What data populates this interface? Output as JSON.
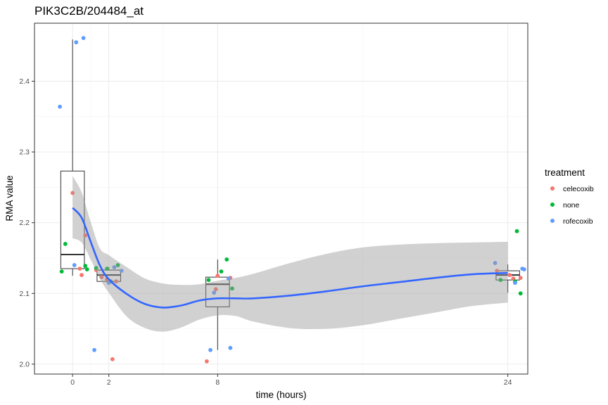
{
  "chart_data": {
    "type": "scatter",
    "title": "PIK3C2B/204484_at",
    "xlabel": "time (hours)",
    "ylabel": "RMA value",
    "xlim": [
      -2.1,
      25.1
    ],
    "ylim": [
      1.986,
      2.482
    ],
    "x_ticks": [
      0,
      2,
      8,
      24
    ],
    "y_ticks": [
      2.0,
      2.1,
      2.2,
      2.3,
      2.4
    ],
    "y_tick_labels": [
      "2.0",
      "2.1",
      "2.2",
      "2.3",
      "2.4"
    ],
    "grid": true,
    "legend": {
      "title": "treatment",
      "position": "right",
      "entries": [
        {
          "name": "celecoxib",
          "color": "#F8766D"
        },
        {
          "name": "none",
          "color": "#00BA38"
        },
        {
          "name": "rofecoxib",
          "color": "#619CFF"
        }
      ]
    },
    "boxplots": [
      {
        "x": 0,
        "lower_whisker": 2.125,
        "q1": 2.135,
        "median": 2.155,
        "q3": 2.273,
        "upper_whisker": 2.459
      },
      {
        "x": 2,
        "lower_whisker": 2.113,
        "q1": 2.117,
        "median": 2.126,
        "q3": 2.133,
        "upper_whisker": 2.137
      },
      {
        "x": 8,
        "lower_whisker": 2.02,
        "q1": 2.081,
        "median": 2.113,
        "q3": 2.123,
        "upper_whisker": 2.148
      },
      {
        "x": 24,
        "lower_whisker": 2.101,
        "q1": 2.119,
        "median": 2.126,
        "q3": 2.132,
        "upper_whisker": 2.141
      }
    ],
    "series": [
      {
        "name": "celecoxib",
        "color": "#F8766D",
        "points": [
          {
            "x": 0.0,
            "y": 2.242
          },
          {
            "x": 0.4,
            "y": 2.135
          },
          {
            "x": 0.5,
            "y": 2.126
          },
          {
            "x": 0.7,
            "y": 2.182
          },
          {
            "x": 1.3,
            "y": 2.133
          },
          {
            "x": 1.6,
            "y": 2.123
          },
          {
            "x": 1.9,
            "y": 2.12
          },
          {
            "x": 2.2,
            "y": 2.007
          },
          {
            "x": 2.4,
            "y": 2.117
          },
          {
            "x": 7.4,
            "y": 2.004
          },
          {
            "x": 7.9,
            "y": 2.106
          },
          {
            "x": 8.0,
            "y": 2.125
          },
          {
            "x": 8.7,
            "y": 2.122
          },
          {
            "x": 23.4,
            "y": 2.132
          },
          {
            "x": 24.1,
            "y": 2.126
          },
          {
            "x": 24.3,
            "y": 2.121
          },
          {
            "x": 24.7,
            "y": 2.122
          }
        ]
      },
      {
        "name": "none",
        "color": "#00BA38",
        "points": [
          {
            "x": -0.4,
            "y": 2.17
          },
          {
            "x": -0.6,
            "y": 2.131
          },
          {
            "x": 0.7,
            "y": 2.139
          },
          {
            "x": 0.8,
            "y": 2.134
          },
          {
            "x": 1.3,
            "y": 2.136
          },
          {
            "x": 1.9,
            "y": 2.135
          },
          {
            "x": 2.1,
            "y": 2.117
          },
          {
            "x": 2.5,
            "y": 2.14
          },
          {
            "x": 7.5,
            "y": 2.119
          },
          {
            "x": 8.2,
            "y": 2.131
          },
          {
            "x": 8.5,
            "y": 2.148
          },
          {
            "x": 8.8,
            "y": 2.107
          },
          {
            "x": 23.6,
            "y": 2.119
          },
          {
            "x": 24.4,
            "y": 2.117
          },
          {
            "x": 24.5,
            "y": 2.188
          },
          {
            "x": 24.7,
            "y": 2.1
          }
        ]
      },
      {
        "name": "rofecoxib",
        "color": "#619CFF",
        "points": [
          {
            "x": -0.7,
            "y": 2.364
          },
          {
            "x": 0.2,
            "y": 2.455
          },
          {
            "x": 0.6,
            "y": 2.461
          },
          {
            "x": 0.1,
            "y": 2.14
          },
          {
            "x": 1.2,
            "y": 2.02
          },
          {
            "x": 2.0,
            "y": 2.115
          },
          {
            "x": 2.3,
            "y": 2.137
          },
          {
            "x": 2.7,
            "y": 2.132
          },
          {
            "x": 7.6,
            "y": 2.02
          },
          {
            "x": 7.8,
            "y": 2.101
          },
          {
            "x": 8.6,
            "y": 2.121
          },
          {
            "x": 8.7,
            "y": 2.023
          },
          {
            "x": 23.3,
            "y": 2.143
          },
          {
            "x": 24.4,
            "y": 2.115
          },
          {
            "x": 24.8,
            "y": 2.135
          },
          {
            "x": 24.9,
            "y": 2.134
          }
        ]
      }
    ],
    "smooth": {
      "color": "#3366FF",
      "band_color": "#999999",
      "points": [
        {
          "x": 0,
          "y": 2.221,
          "lo": 2.178,
          "hi": 2.266
        },
        {
          "x": 0.5,
          "y": 2.207,
          "lo": 2.172,
          "hi": 2.243
        },
        {
          "x": 1,
          "y": 2.173,
          "lo": 2.148,
          "hi": 2.201
        },
        {
          "x": 1.5,
          "y": 2.14,
          "lo": 2.121,
          "hi": 2.164
        },
        {
          "x": 2,
          "y": 2.12,
          "lo": 2.101,
          "hi": 2.154
        },
        {
          "x": 3,
          "y": 2.099,
          "lo": 2.067,
          "hi": 2.137
        },
        {
          "x": 4,
          "y": 2.085,
          "lo": 2.051,
          "hi": 2.121
        },
        {
          "x": 5,
          "y": 2.08,
          "lo": 2.046,
          "hi": 2.114
        },
        {
          "x": 6,
          "y": 2.083,
          "lo": 2.052,
          "hi": 2.112
        },
        {
          "x": 7,
          "y": 2.09,
          "lo": 2.063,
          "hi": 2.113
        },
        {
          "x": 8,
          "y": 2.093,
          "lo": 2.069,
          "hi": 2.118
        },
        {
          "x": 9,
          "y": 2.093,
          "lo": 2.068,
          "hi": 2.122
        },
        {
          "x": 10,
          "y": 2.093,
          "lo": 2.06,
          "hi": 2.128
        },
        {
          "x": 12,
          "y": 2.097,
          "lo": 2.051,
          "hi": 2.143
        },
        {
          "x": 14,
          "y": 2.103,
          "lo": 2.05,
          "hi": 2.156
        },
        {
          "x": 16,
          "y": 2.11,
          "lo": 2.055,
          "hi": 2.165
        },
        {
          "x": 18,
          "y": 2.116,
          "lo": 2.064,
          "hi": 2.169
        },
        {
          "x": 20,
          "y": 2.122,
          "lo": 2.073,
          "hi": 2.171
        },
        {
          "x": 22,
          "y": 2.127,
          "lo": 2.082,
          "hi": 2.172
        },
        {
          "x": 24,
          "y": 2.129,
          "lo": 2.087,
          "hi": 2.173
        }
      ]
    }
  }
}
